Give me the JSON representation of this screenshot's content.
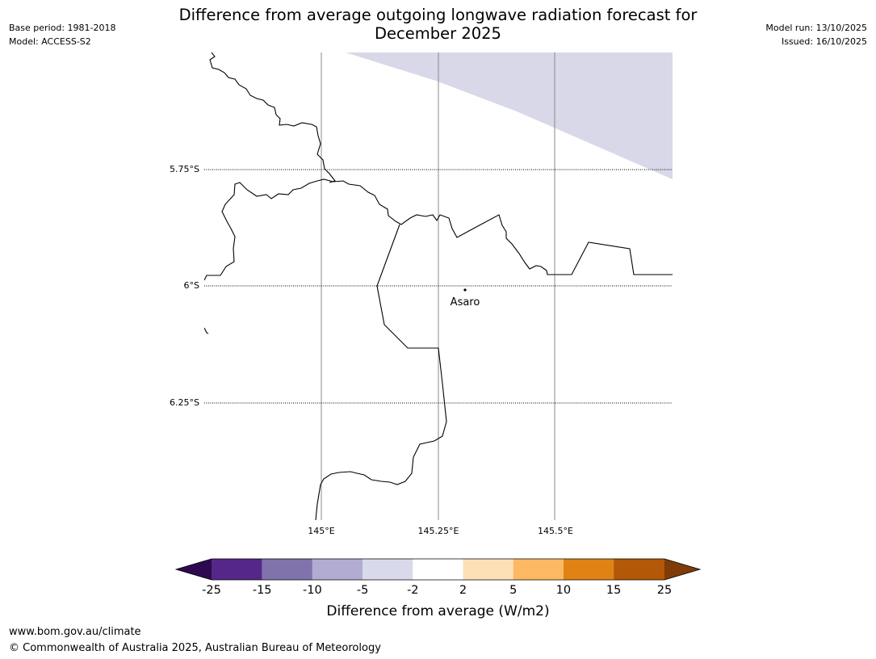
{
  "title": {
    "line1": "Difference from average outgoing longwave radiation forecast for",
    "line2": "December 2025"
  },
  "meta_left": {
    "base_period": "Base period: 1981-2018",
    "model": "Model: ACCESS-S2"
  },
  "meta_right": {
    "model_run": "Model run: 13/10/2025",
    "issued": "Issued: 16/10/2025"
  },
  "map": {
    "latitude_labels": [
      "5.75°S",
      "6°S",
      "6.25°S"
    ],
    "longitude_labels": [
      "145°E",
      "145.25°E",
      "145.5°E"
    ],
    "place": {
      "name": "Asaro"
    },
    "anomaly_category_shown": "-5 to -2",
    "anomaly_fill_color": "#d8d8e9"
  },
  "colorbar": {
    "title": "Difference from average (W/m2)",
    "ticks": [
      "-25",
      "-15",
      "-10",
      "-5",
      "-2",
      "2",
      "5",
      "10",
      "15",
      "25"
    ],
    "below_color": "#2d0a50",
    "above_color": "#7f3b08",
    "colors": [
      "#542788",
      "#8073ac",
      "#b2abd2",
      "#d8daeb",
      "#ffffff",
      "#fee0b6",
      "#fdb863",
      "#e08214",
      "#b35806"
    ]
  },
  "footer": {
    "url": "www.bom.gov.au/climate",
    "copyright": "© Commonwealth of Australia 2025, Australian Bureau of Meteorology"
  }
}
